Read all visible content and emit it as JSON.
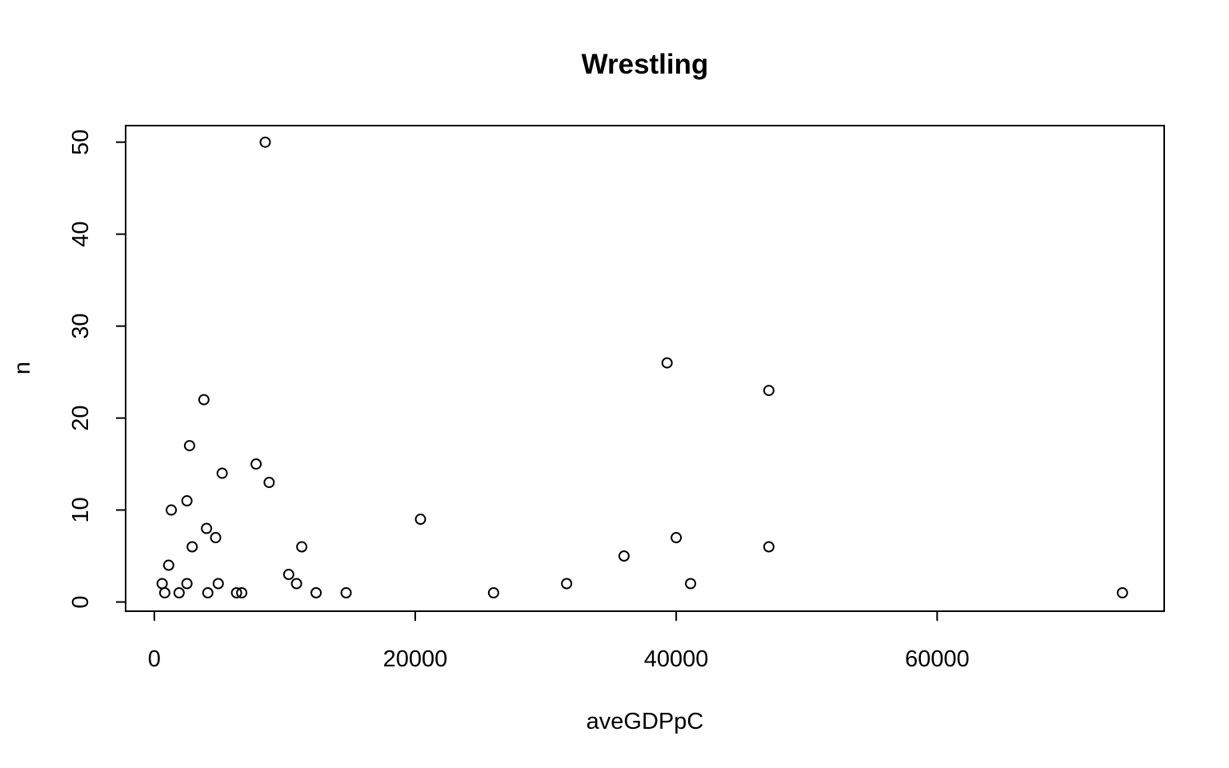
{
  "chart_data": {
    "type": "scatter",
    "title": "Wrestling",
    "xlabel": "aveGDPpC",
    "ylabel": "n",
    "xlim": [
      -2200,
      77400
    ],
    "ylim": [
      -1,
      51.8
    ],
    "x_ticks": [
      0,
      20000,
      40000,
      60000
    ],
    "x_tick_labels": [
      "0",
      "20000",
      "40000",
      "60000"
    ],
    "y_ticks": [
      0,
      10,
      20,
      30,
      40,
      50
    ],
    "y_tick_labels": [
      "0",
      "10",
      "20",
      "30",
      "40",
      "50"
    ],
    "grid": false,
    "points": [
      {
        "x": 8500,
        "y": 50
      },
      {
        "x": 39300,
        "y": 26
      },
      {
        "x": 47100,
        "y": 23
      },
      {
        "x": 3800,
        "y": 22
      },
      {
        "x": 2700,
        "y": 17
      },
      {
        "x": 7800,
        "y": 15
      },
      {
        "x": 5200,
        "y": 14
      },
      {
        "x": 8800,
        "y": 13
      },
      {
        "x": 2500,
        "y": 11
      },
      {
        "x": 1300,
        "y": 10
      },
      {
        "x": 20400,
        "y": 9
      },
      {
        "x": 4000,
        "y": 8
      },
      {
        "x": 4700,
        "y": 7
      },
      {
        "x": 40000,
        "y": 7
      },
      {
        "x": 2900,
        "y": 6
      },
      {
        "x": 11300,
        "y": 6
      },
      {
        "x": 47100,
        "y": 6
      },
      {
        "x": 36000,
        "y": 5
      },
      {
        "x": 1100,
        "y": 4
      },
      {
        "x": 10300,
        "y": 3
      },
      {
        "x": 600,
        "y": 2
      },
      {
        "x": 2500,
        "y": 2
      },
      {
        "x": 4900,
        "y": 2
      },
      {
        "x": 10900,
        "y": 2
      },
      {
        "x": 31600,
        "y": 2
      },
      {
        "x": 41100,
        "y": 2
      },
      {
        "x": 800,
        "y": 1
      },
      {
        "x": 1900,
        "y": 1
      },
      {
        "x": 4100,
        "y": 1
      },
      {
        "x": 6300,
        "y": 1
      },
      {
        "x": 6700,
        "y": 1
      },
      {
        "x": 12400,
        "y": 1
      },
      {
        "x": 14700,
        "y": 1
      },
      {
        "x": 26000,
        "y": 1
      },
      {
        "x": 74200,
        "y": 1
      }
    ]
  }
}
